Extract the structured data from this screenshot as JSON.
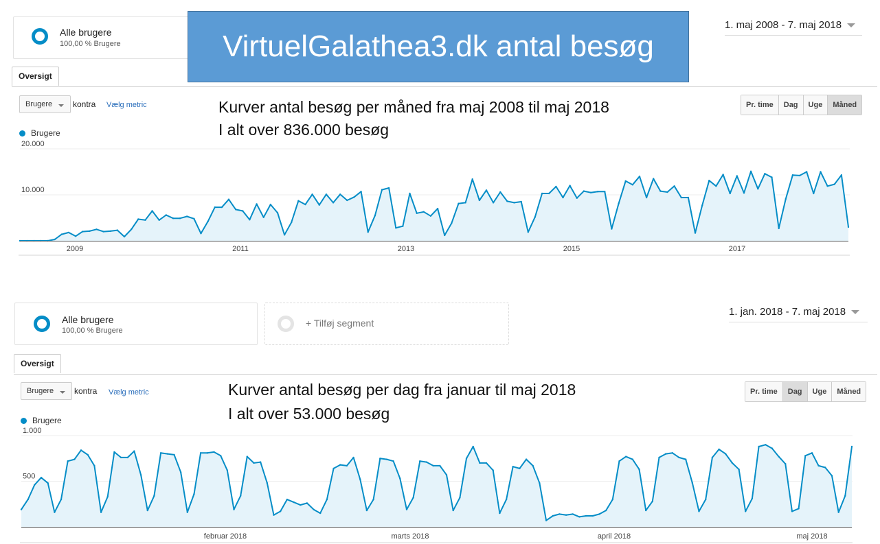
{
  "title": "VirtuelGalathea3.dk antal besøg",
  "colors": {
    "line": "#058dc7",
    "area": "#e5f3fa",
    "banner": "#5b9bd5"
  },
  "panel1": {
    "segment": {
      "name": "Alle brugere",
      "sub": "100,00 % Brugere"
    },
    "date_range": "1. maj 2008 - 7. maj 2018",
    "tab": "Oversigt",
    "metric": "Brugere",
    "kontra": "kontra",
    "vaelg_metric": "Vælg metric",
    "buttons": [
      "Pr. time",
      "Dag",
      "Uge",
      "Måned"
    ],
    "active_button": "Måned",
    "legend": "Brugere",
    "note_line1": "Kurver antal besøg per måned fra maj 2008 til maj 2018",
    "note_line2": "I alt over 836.000 besøg"
  },
  "panel2": {
    "segment": {
      "name": "Alle brugere",
      "sub": "100,00 % Brugere"
    },
    "add_segment": "+ Tilføj segment",
    "date_range": "1. jan. 2018 - 7. maj 2018",
    "tab": "Oversigt",
    "metric": "Brugere",
    "kontra": "kontra",
    "vaelg_metric": "Vælg metric",
    "buttons": [
      "Pr. time",
      "Dag",
      "Uge",
      "Måned"
    ],
    "active_button": "Dag",
    "legend": "Brugere",
    "note_line1": "Kurver antal besøg per dag fra januar til maj 2018",
    "note_line2": "I alt over 53.000 besøg"
  },
  "chart_data": [
    {
      "type": "area",
      "series": [
        {
          "name": "Brugere",
          "values": [
            0,
            0,
            0,
            0,
            0,
            300,
            1400,
            1800,
            1000,
            2000,
            2100,
            2500,
            2000,
            2100,
            2300,
            900,
            2500,
            4700,
            4500,
            6500,
            4500,
            5600,
            4900,
            4900,
            5300,
            4800,
            1600,
            4200,
            7300,
            7300,
            9000,
            6800,
            6500,
            4600,
            8000,
            5100,
            7900,
            6100,
            1300,
            4000,
            8700,
            7900,
            10100,
            7800,
            10100,
            8300,
            10100,
            8800,
            9500,
            10700,
            1900,
            5500,
            11100,
            11500,
            2800,
            3200,
            10300,
            6000,
            6300,
            5400,
            7000,
            1200,
            3800,
            8100,
            8300,
            13400,
            8800,
            11000,
            8300,
            10600,
            8600,
            8300,
            8500,
            1900,
            5200,
            10300,
            10300,
            11800,
            9400,
            12000,
            9300,
            10800,
            10500,
            10700,
            10700,
            2600,
            8100,
            13000,
            12200,
            14000,
            9400,
            13500,
            10800,
            10600,
            11900,
            9400,
            9400,
            1700,
            7700,
            13100,
            11900,
            14400,
            10300,
            14100,
            10400,
            15100,
            11300,
            14600,
            13800,
            2700,
            9100,
            14300,
            14200,
            15000,
            10300,
            15000,
            11900,
            12300,
            14300,
            3000
          ]
        }
      ],
      "x_tick_labels": [
        "2009",
        "2011",
        "2013",
        "2015",
        "2017"
      ],
      "y_tick_labels": [
        "10.000",
        "20.000"
      ],
      "ylim": [
        0,
        20000
      ]
    },
    {
      "type": "area",
      "series": [
        {
          "name": "Brugere",
          "values": [
            190,
            300,
            460,
            540,
            480,
            160,
            300,
            720,
            740,
            840,
            790,
            670,
            160,
            330,
            820,
            760,
            760,
            830,
            570,
            180,
            340,
            810,
            800,
            790,
            600,
            160,
            360,
            810,
            810,
            820,
            780,
            620,
            190,
            340,
            770,
            700,
            710,
            480,
            130,
            170,
            300,
            270,
            240,
            260,
            190,
            150,
            300,
            640,
            680,
            670,
            760,
            520,
            180,
            300,
            750,
            740,
            720,
            530,
            190,
            320,
            720,
            710,
            670,
            670,
            570,
            180,
            320,
            750,
            880,
            700,
            700,
            620,
            150,
            300,
            660,
            640,
            740,
            670,
            480,
            70,
            120,
            140,
            130,
            140,
            110,
            120,
            120,
            140,
            180,
            300,
            720,
            770,
            740,
            630,
            180,
            280,
            760,
            800,
            810,
            760,
            740,
            480,
            170,
            300,
            760,
            850,
            800,
            700,
            630,
            170,
            310,
            880,
            900,
            860,
            770,
            690,
            170,
            200,
            780,
            810,
            670,
            650,
            560,
            160,
            340,
            880
          ]
        }
      ],
      "x_tick_labels": [
        "februar 2018",
        "marts 2018",
        "april 2018",
        "maj 2018"
      ],
      "y_tick_labels": [
        "500",
        "1.000"
      ],
      "ylim": [
        0,
        1000
      ]
    }
  ]
}
